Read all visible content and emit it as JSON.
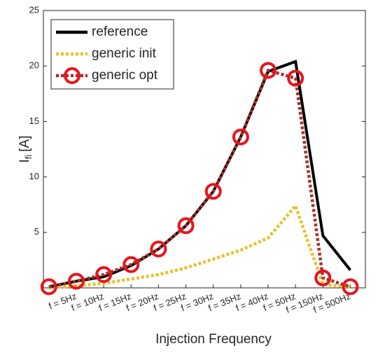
{
  "chart_data": {
    "type": "line",
    "ylabel": {
      "main": "I",
      "sub": "fi",
      "unit": "[A]"
    },
    "xlabel": "Injection Frequency",
    "categories": [
      null,
      "f = 5Hz",
      "f = 10Hz",
      "f = 15Hz",
      "f = 20Hz",
      "f = 25Hz",
      "f = 30Hz",
      "f = 35Hz",
      "f = 40Hz",
      "f = 50Hz",
      "f = 150Hz",
      "f = 500Hz"
    ],
    "series": [
      {
        "name": "reference",
        "color": "#000000",
        "style": "solid",
        "values": [
          0.1,
          0.6,
          1.0,
          2.0,
          3.5,
          5.6,
          8.7,
          13.6,
          19.5,
          20.4,
          4.7,
          1.6
        ]
      },
      {
        "name": "generic init",
        "color": "#e6c229",
        "style": "dotted",
        "values": [
          0.0,
          0.2,
          0.4,
          0.8,
          1.2,
          1.8,
          2.6,
          3.4,
          4.5,
          7.4,
          0.3,
          0.1
        ]
      },
      {
        "name": "generic opt",
        "color": "#a8302a",
        "style": "dotted",
        "marker": "circle",
        "marker_color": "#e8141c",
        "values": [
          0.1,
          0.6,
          1.2,
          2.1,
          3.5,
          5.6,
          8.7,
          13.6,
          19.6,
          18.9,
          0.9,
          0.1
        ]
      }
    ],
    "ylim": [
      0,
      25
    ],
    "yticks": [
      5,
      10,
      15,
      20,
      25
    ],
    "legend": "upper left",
    "grid": false
  }
}
